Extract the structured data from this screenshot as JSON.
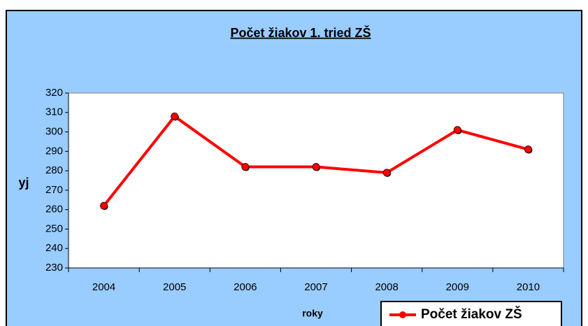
{
  "chart_data": {
    "type": "line",
    "title": "Počet žiakov 1. tried ZŠ",
    "x_label": "roky",
    "y_label": "yj",
    "categories": [
      "2004",
      "2005",
      "2006",
      "2007",
      "2008",
      "2009",
      "2010"
    ],
    "series": [
      {
        "name": "Počet žiakov ZŠ",
        "color": "#ff0000",
        "values": [
          262,
          308,
          282,
          282,
          279,
          301,
          291
        ]
      }
    ],
    "ylim": [
      230,
      320
    ],
    "yticks": [
      230,
      240,
      250,
      260,
      270,
      280,
      290,
      300,
      310,
      320
    ],
    "legend": "bottom-right",
    "background": "#99ccff"
  }
}
